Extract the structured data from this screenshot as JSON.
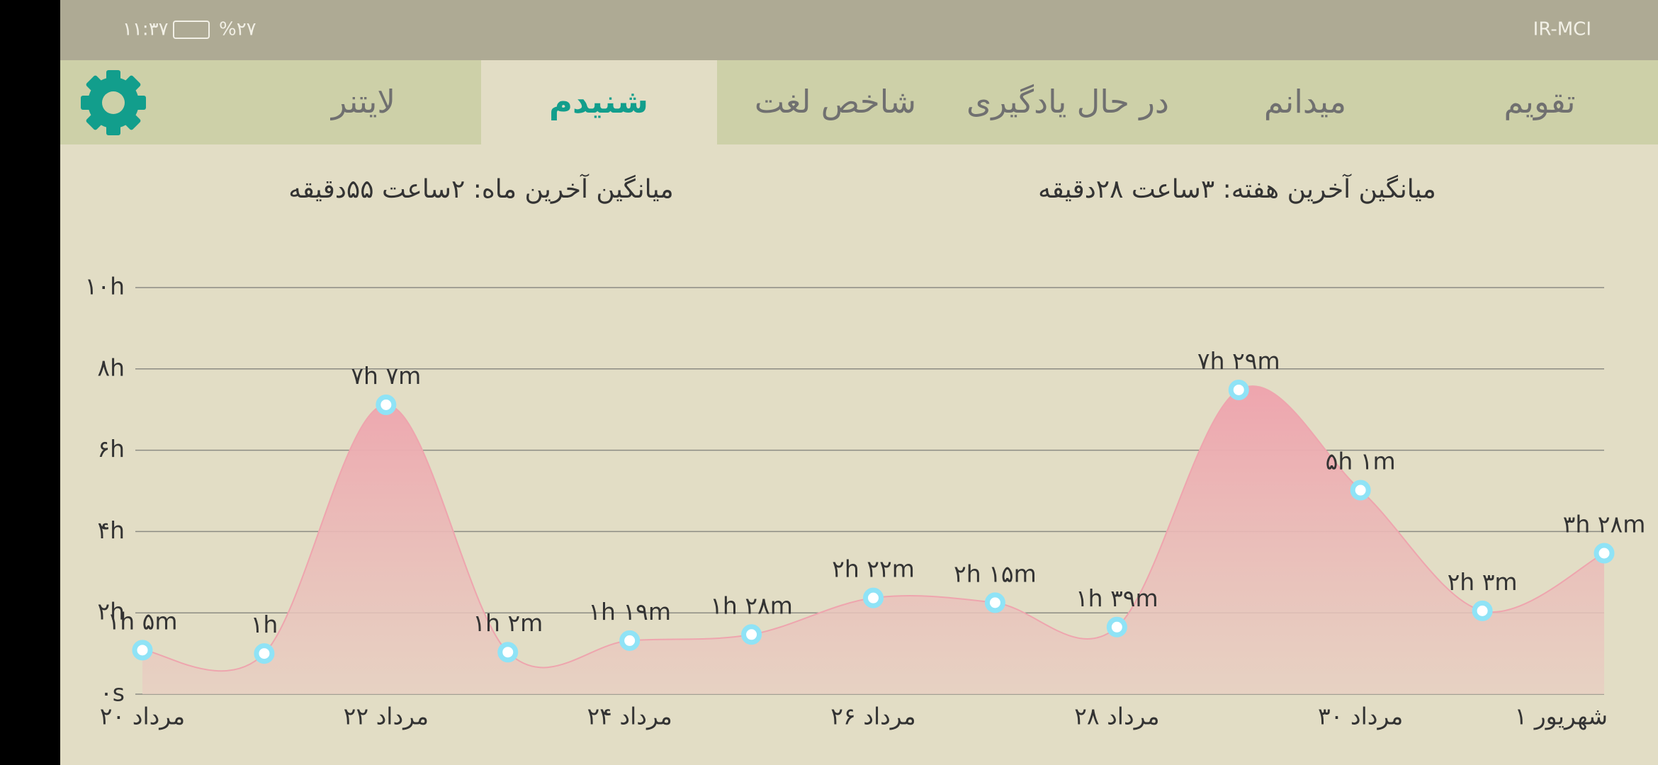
{
  "status_bar": {
    "time": "۱۱:۳۷",
    "battery": "%۲۷",
    "carrier": "IR-MCI"
  },
  "tabs": [
    "تقویم",
    "میدانم",
    "در حال یادگیری",
    "شاخص لغت",
    "شنیدم",
    "لایتنر"
  ],
  "selected_tab": 4,
  "averages": {
    "week": "میانگین آخرین هفته: ۳ساعت  ۲۸دقیقه",
    "month": "میانگین آخرین ماه: ۲ساعت  ۵۵دقیقه"
  },
  "chart_data": {
    "type": "area",
    "categories": [
      "۲۰ مرداد",
      null,
      "۲۲ مرداد",
      null,
      "۲۴ مرداد",
      null,
      "۲۶ مرداد",
      null,
      "۲۸ مرداد",
      null,
      "۳۰ مرداد",
      null,
      "۱ شهریور"
    ],
    "values": [
      1.083,
      1,
      7.117,
      1.033,
      1.317,
      1.467,
      2.367,
      2.25,
      1.65,
      7.483,
      5.017,
      2.05,
      3.467
    ],
    "value_labels": [
      "۱h ۵m",
      "۱h",
      "۷h ۷m",
      "۱h ۲m",
      "۱h ۱۹m",
      "۱h ۲۸m",
      "۲h ۲۲m",
      "۲h ۱۵m",
      "۱h ۳۹m",
      "۷h ۲۹m",
      "۵h ۱m",
      "۲h ۳m",
      "۳h ۲۸m"
    ],
    "color": "#eea5ae",
    "ylim": [
      0,
      10
    ],
    "yticks": [
      {
        "value": 0,
        "label": "۰s"
      },
      {
        "value": 2,
        "label": "۲h"
      },
      {
        "value": 4,
        "label": "۴h"
      },
      {
        "value": 6,
        "label": "۶h"
      },
      {
        "value": 8,
        "label": "۸h"
      },
      {
        "value": 10,
        "label": "۱۰h"
      }
    ],
    "grid": true
  }
}
